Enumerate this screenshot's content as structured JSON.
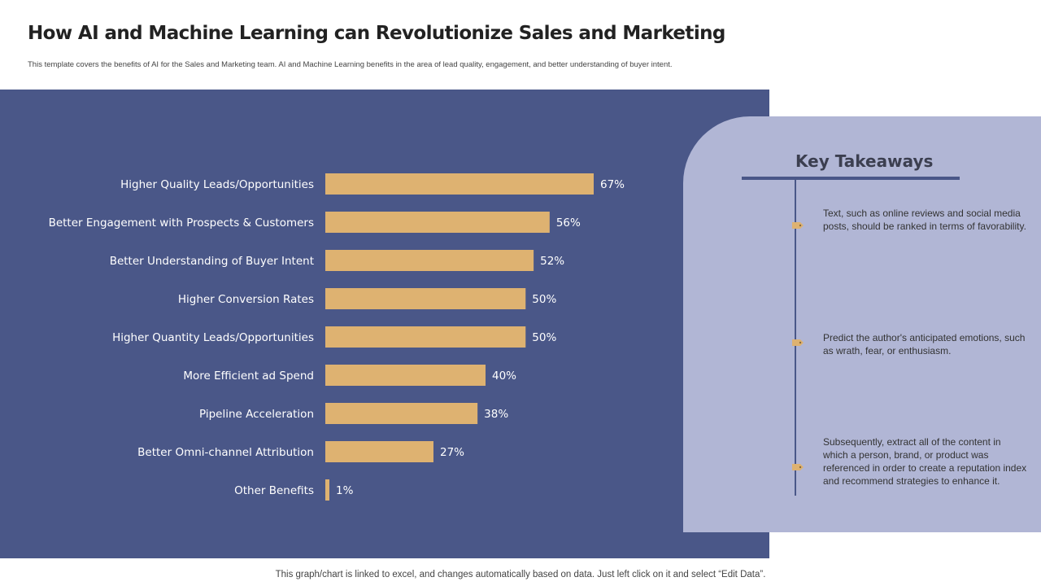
{
  "header": {
    "title": "How AI and Machine Learning can Revolutionize Sales and Marketing",
    "subtitle": "This template covers the benefits of AI for the Sales and Marketing team.  AI and Machine Learning benefits in the area of lead quality, engagement, and  better understanding of buyer intent."
  },
  "chart_data": {
    "type": "bar",
    "orientation": "horizontal",
    "title": "",
    "xlabel": "",
    "ylabel": "",
    "xlim": [
      0,
      100
    ],
    "value_suffix": "%",
    "categories": [
      "Higher Quality Leads/Opportunities",
      "Better Engagement with Prospects & Customers",
      "Better Understanding of Buyer Intent",
      "Higher Conversion Rates",
      "Higher Quantity Leads/Opportunities",
      "More Efficient ad Spend",
      "Pipeline Acceleration",
      "Better Omni-channel Attribution",
      "Other Benefits"
    ],
    "values": [
      67,
      56,
      52,
      50,
      50,
      40,
      38,
      27,
      1
    ],
    "bar_color": "#deb271",
    "background_color": "#4a5788"
  },
  "takeaways": {
    "title": "Key Takeaways",
    "marker_icon": "tag-arrow-icon",
    "items": [
      "Text, such as online reviews  and social media posts, should be ranked in terms of favorability.",
      "Predict the author's anticipated emotions, such as wrath, fear, or enthusiasm.",
      "Subsequently, extract all of the content in which a person, brand, or product was referenced  in order to create a reputation index and recommend strategies to enhance it."
    ]
  },
  "footer": {
    "note": "This graph/chart is linked to excel,  and changes automatically based on data. Just left click on it and select “Edit Data”."
  }
}
